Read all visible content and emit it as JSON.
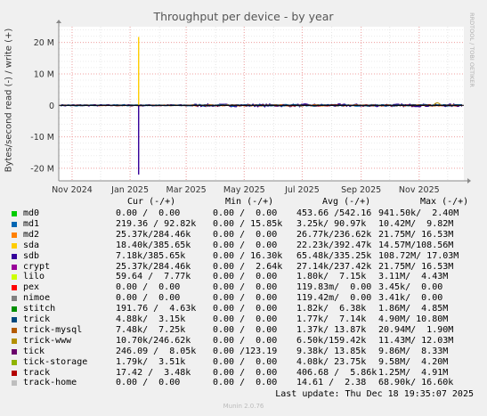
{
  "chart_data": {
    "type": "line",
    "title": "Throughput per device - by year",
    "ylabel": "Bytes/second read (-) / write (+)",
    "side_label": "RRDTOOL / TOBI OETIKER",
    "xlabel": "",
    "x_ticks": [
      "Nov 2024",
      "Jan 2025",
      "Mar 2025",
      "May 2025",
      "Jul 2025",
      "Sep 2025",
      "Nov 2025"
    ],
    "y_ticks": [
      "20 M",
      "10 M",
      "0",
      "-10 M",
      "-20 M"
    ],
    "y_tick_values": [
      20000000,
      10000000,
      0,
      -10000000,
      -20000000
    ],
    "ylim": [
      -24000000,
      25000000
    ],
    "xlim": [
      "2024-10-18",
      "2025-12-18"
    ],
    "grid": true,
    "series": [
      {
        "name": "md0",
        "color": "#00cc00"
      },
      {
        "name": "md1",
        "color": "#0066b3"
      },
      {
        "name": "md2",
        "color": "#ff8000"
      },
      {
        "name": "sda",
        "color": "#ffcc00"
      },
      {
        "name": "sdb",
        "color": "#330099"
      },
      {
        "name": "crypt",
        "color": "#990099"
      },
      {
        "name": "lilo",
        "color": "#ccff00"
      },
      {
        "name": "pex",
        "color": "#ff0000"
      },
      {
        "name": "nimoe",
        "color": "#808080"
      },
      {
        "name": "stitch",
        "color": "#008f00"
      },
      {
        "name": "trick",
        "color": "#00487d"
      },
      {
        "name": "trick-mysql",
        "color": "#b35a00"
      },
      {
        "name": "trick-www",
        "color": "#b38f00"
      },
      {
        "name": "tick",
        "color": "#6b006b"
      },
      {
        "name": "tick-storage",
        "color": "#8fb300"
      },
      {
        "name": "track",
        "color": "#b30000"
      },
      {
        "name": "track-home",
        "color": "#bebebe"
      }
    ],
    "notable_values": {
      "sda_write_spike": {
        "x": "2025-01-10",
        "y": 21750000
      },
      "sdb_read_spike": {
        "x": "2025-01-10",
        "y": -22000000
      }
    }
  },
  "legend": {
    "headers": {
      "cur": "Cur (-/+)",
      "min": "Min (-/+)",
      "avg": "Avg (-/+)",
      "max": "Max (-/+)"
    },
    "rows": [
      {
        "name": "md0",
        "cur": "0.00 /  0.00",
        "min": "0.00 /  0.00",
        "avg": "453.66 /542.16",
        "max": "941.50k/  2.40M"
      },
      {
        "name": "md1",
        "cur": "219.36 / 92.82k",
        "min": "0.00 / 15.85k",
        "avg": "3.25k/ 90.97k",
        "max": "10.42M/  9.82M"
      },
      {
        "name": "md2",
        "cur": "25.37k/284.46k",
        "min": "0.00 /  0.00",
        "avg": "26.77k/236.62k",
        "max": "21.75M/ 16.53M"
      },
      {
        "name": "sda",
        "cur": "18.40k/385.65k",
        "min": "0.00 /  0.00",
        "avg": "22.23k/392.47k",
        "max": "14.57M/108.56M"
      },
      {
        "name": "sdb",
        "cur": "7.18k/385.65k",
        "min": "0.00 / 16.30k",
        "avg": "65.48k/335.25k",
        "max": "108.72M/ 17.03M"
      },
      {
        "name": "crypt",
        "cur": "25.37k/284.46k",
        "min": "0.00 /  2.64k",
        "avg": "27.14k/237.42k",
        "max": "21.75M/ 16.53M"
      },
      {
        "name": "lilo",
        "cur": "59.64 /  7.77k",
        "min": "0.00 /  0.00",
        "avg": "1.80k/  7.15k",
        "max": "3.11M/  4.43M"
      },
      {
        "name": "pex",
        "cur": "0.00 /  0.00",
        "min": "0.00 /  0.00",
        "avg": "119.83m/  0.00",
        "max": "3.45k/  0.00"
      },
      {
        "name": "nimoe",
        "cur": "0.00 /  0.00",
        "min": "0.00 /  0.00",
        "avg": "119.42m/  0.00",
        "max": "3.41k/  0.00"
      },
      {
        "name": "stitch",
        "cur": "191.76 /  4.63k",
        "min": "0.00 /  0.00",
        "avg": "1.82k/  6.38k",
        "max": "1.86M/  4.85M"
      },
      {
        "name": "trick",
        "cur": "4.88k/  3.15k",
        "min": "0.00 /  0.00",
        "avg": "1.77k/  7.14k",
        "max": "4.90M/ 10.80M"
      },
      {
        "name": "trick-mysql",
        "cur": "7.48k/  7.25k",
        "min": "0.00 /  0.00",
        "avg": "1.37k/ 13.87k",
        "max": "20.94M/  1.90M"
      },
      {
        "name": "trick-www",
        "cur": "10.70k/246.62k",
        "min": "0.00 /  0.00",
        "avg": "6.50k/159.42k",
        "max": "11.43M/ 12.03M"
      },
      {
        "name": "tick",
        "cur": "246.09 /  8.05k",
        "min": "0.00 /123.19",
        "avg": "9.38k/ 13.85k",
        "max": "9.86M/  8.33M"
      },
      {
        "name": "tick-storage",
        "cur": "1.79k/  3.51k",
        "min": "0.00 /  0.00",
        "avg": "4.08k/ 23.75k",
        "max": "9.58M/  4.20M"
      },
      {
        "name": "track",
        "cur": "17.42 /  3.48k",
        "min": "0.00 /  0.00",
        "avg": "406.68 /  5.86k",
        "max": "1.25M/  4.91M"
      },
      {
        "name": "track-home",
        "cur": "0.00 /  0.00",
        "min": "0.00 /  0.00",
        "avg": "14.61 /  2.38",
        "max": "68.90k/ 16.60k"
      }
    ]
  },
  "last_update": "Last update: Thu Dec 18 19:35:07 2025",
  "footer": "Munin 2.0.76"
}
